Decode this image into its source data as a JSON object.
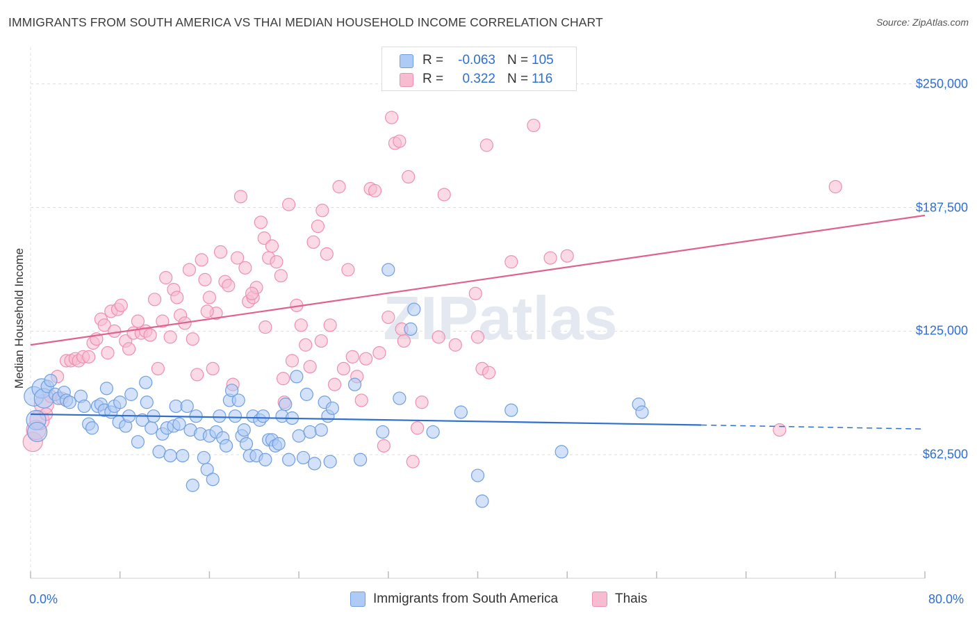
{
  "title": "IMMIGRANTS FROM SOUTH AMERICA VS THAI MEDIAN HOUSEHOLD INCOME CORRELATION CHART",
  "source": "Source: ZipAtlas.com",
  "watermark": "ZIPatlas",
  "legend_top": {
    "rows": [
      {
        "r_label": "R =",
        "r_value": "-0.063",
        "n_label": "N =",
        "n_value": "105"
      },
      {
        "r_label": "R =",
        "r_value": "0.322",
        "n_label": "N =",
        "n_value": "116"
      }
    ]
  },
  "colors": {
    "blue_fill": "#aecbf5",
    "blue_stroke": "#6f9fe0",
    "blue_line": "#2e6fd0",
    "pink_fill": "#f7bcd0",
    "pink_stroke": "#ee8fb0",
    "pink_line": "#e0628c",
    "grid": "#dddddd",
    "axis_text": "#2e6fd0"
  },
  "chart_data": {
    "type": "scatter",
    "title": "IMMIGRANTS FROM SOUTH AMERICA VS THAI MEDIAN HOUSEHOLD INCOME CORRELATION CHART",
    "xlabel": "",
    "ylabel": "Median Household Income",
    "xlim": [
      0,
      80
    ],
    "ylim": [
      0,
      265000
    ],
    "x_ticks": [
      "0.0%",
      "80.0%"
    ],
    "y_ticks": [
      {
        "value": 62500,
        "label": "$62,500"
      },
      {
        "value": 125000,
        "label": "$125,000"
      },
      {
        "value": 187500,
        "label": "$187,500"
      },
      {
        "value": 250000,
        "label": "$250,000"
      }
    ],
    "grid": true,
    "legend_placement": "bottom",
    "series": [
      {
        "name": "Immigrants from South America",
        "color": "#6f9fe0",
        "trend": {
          "x": [
            0,
            60
          ],
          "y": [
            83000,
            77500
          ],
          "dashed_to_x": 80,
          "dashed_y_end": 75500
        },
        "points": [
          [
            0.3,
            92000
          ],
          [
            0.5,
            80000
          ],
          [
            0.6,
            74000
          ],
          [
            1.0,
            96000
          ],
          [
            1.2,
            91000
          ],
          [
            1.5,
            97000
          ],
          [
            1.8,
            100000
          ],
          [
            2.2,
            93000
          ],
          [
            2.5,
            91000
          ],
          [
            3.0,
            94000
          ],
          [
            3.2,
            90000
          ],
          [
            3.5,
            89000
          ],
          [
            4.5,
            92000
          ],
          [
            4.8,
            87000
          ],
          [
            5.2,
            78000
          ],
          [
            5.5,
            76000
          ],
          [
            6.0,
            87000
          ],
          [
            6.3,
            88000
          ],
          [
            6.6,
            85000
          ],
          [
            6.8,
            96000
          ],
          [
            7.2,
            84000
          ],
          [
            7.5,
            87000
          ],
          [
            7.9,
            79000
          ],
          [
            8.0,
            89000
          ],
          [
            8.5,
            77000
          ],
          [
            8.8,
            82000
          ],
          [
            9.0,
            93000
          ],
          [
            9.6,
            69000
          ],
          [
            10.0,
            80000
          ],
          [
            10.3,
            99000
          ],
          [
            10.4,
            89000
          ],
          [
            10.8,
            76000
          ],
          [
            11.0,
            82000
          ],
          [
            11.5,
            64000
          ],
          [
            11.8,
            73000
          ],
          [
            12.2,
            76000
          ],
          [
            12.5,
            62000
          ],
          [
            12.8,
            77000
          ],
          [
            13.0,
            87000
          ],
          [
            13.3,
            78000
          ],
          [
            13.6,
            62000
          ],
          [
            14.0,
            87000
          ],
          [
            14.3,
            75000
          ],
          [
            14.5,
            47000
          ],
          [
            14.8,
            82000
          ],
          [
            15.2,
            73000
          ],
          [
            15.5,
            61000
          ],
          [
            15.8,
            55000
          ],
          [
            16.0,
            72000
          ],
          [
            16.3,
            50000
          ],
          [
            16.6,
            74000
          ],
          [
            16.9,
            82000
          ],
          [
            17.2,
            71000
          ],
          [
            17.5,
            67000
          ],
          [
            17.8,
            90000
          ],
          [
            18.0,
            95000
          ],
          [
            18.3,
            82000
          ],
          [
            18.6,
            90000
          ],
          [
            18.9,
            72000
          ],
          [
            19.1,
            75000
          ],
          [
            19.3,
            68000
          ],
          [
            19.6,
            62000
          ],
          [
            19.9,
            82000
          ],
          [
            20.2,
            62000
          ],
          [
            20.5,
            80000
          ],
          [
            20.8,
            82000
          ],
          [
            21.0,
            60000
          ],
          [
            21.3,
            70000
          ],
          [
            21.6,
            70000
          ],
          [
            21.9,
            67000
          ],
          [
            22.2,
            68000
          ],
          [
            22.5,
            82000
          ],
          [
            22.8,
            88000
          ],
          [
            23.1,
            60000
          ],
          [
            23.4,
            81000
          ],
          [
            23.8,
            102000
          ],
          [
            24.0,
            72000
          ],
          [
            24.4,
            61000
          ],
          [
            24.7,
            93000
          ],
          [
            25.0,
            74000
          ],
          [
            25.4,
            58000
          ],
          [
            26.0,
            75000
          ],
          [
            26.3,
            89000
          ],
          [
            26.6,
            82000
          ],
          [
            26.8,
            59000
          ],
          [
            27.0,
            86000
          ],
          [
            29.0,
            98000
          ],
          [
            31.5,
            74000
          ],
          [
            32.0,
            156000
          ],
          [
            33.0,
            91000
          ],
          [
            34.0,
            126000
          ],
          [
            34.3,
            136000
          ],
          [
            36.0,
            74000
          ],
          [
            38.5,
            84000
          ],
          [
            40.0,
            52000
          ],
          [
            40.4,
            39000
          ],
          [
            43.0,
            85000
          ],
          [
            47.5,
            64000
          ],
          [
            54.4,
            88000
          ],
          [
            54.7,
            84000
          ],
          [
            29.5,
            60000
          ]
        ]
      },
      {
        "name": "Thais",
        "color": "#ee8fb0",
        "trend": {
          "x": [
            0,
            80
          ],
          "y": [
            118000,
            183500
          ]
        },
        "points": [
          [
            0.2,
            69000
          ],
          [
            0.5,
            75000
          ],
          [
            0.8,
            80000
          ],
          [
            1.2,
            88000
          ],
          [
            1.4,
            83000
          ],
          [
            1.8,
            92000
          ],
          [
            2.4,
            102000
          ],
          [
            2.8,
            91000
          ],
          [
            3.2,
            110000
          ],
          [
            3.6,
            110000
          ],
          [
            4.0,
            111000
          ],
          [
            4.3,
            110000
          ],
          [
            4.7,
            112000
          ],
          [
            5.2,
            112000
          ],
          [
            5.6,
            119000
          ],
          [
            5.9,
            121000
          ],
          [
            6.3,
            131000
          ],
          [
            6.6,
            128000
          ],
          [
            6.9,
            114000
          ],
          [
            7.2,
            135000
          ],
          [
            7.5,
            125000
          ],
          [
            7.8,
            136000
          ],
          [
            8.1,
            138000
          ],
          [
            8.5,
            120000
          ],
          [
            8.8,
            116000
          ],
          [
            9.2,
            124000
          ],
          [
            9.6,
            130000
          ],
          [
            9.9,
            124000
          ],
          [
            10.3,
            125000
          ],
          [
            10.7,
            123000
          ],
          [
            11.1,
            141000
          ],
          [
            11.4,
            106000
          ],
          [
            11.8,
            130000
          ],
          [
            12.1,
            152000
          ],
          [
            12.5,
            122000
          ],
          [
            12.8,
            146000
          ],
          [
            13.1,
            142000
          ],
          [
            13.4,
            133000
          ],
          [
            13.8,
            129000
          ],
          [
            14.2,
            156000
          ],
          [
            14.5,
            121000
          ],
          [
            14.9,
            103000
          ],
          [
            15.3,
            161000
          ],
          [
            15.6,
            151000
          ],
          [
            16.0,
            142000
          ],
          [
            16.3,
            106000
          ],
          [
            16.6,
            134000
          ],
          [
            17.0,
            165000
          ],
          [
            17.4,
            150000
          ],
          [
            17.7,
            148000
          ],
          [
            18.1,
            98000
          ],
          [
            18.5,
            162000
          ],
          [
            18.8,
            193000
          ],
          [
            19.2,
            157000
          ],
          [
            19.5,
            140000
          ],
          [
            19.9,
            142000
          ],
          [
            20.2,
            147000
          ],
          [
            20.6,
            180000
          ],
          [
            20.9,
            172000
          ],
          [
            21.3,
            162000
          ],
          [
            21.6,
            168000
          ],
          [
            22.0,
            160000
          ],
          [
            22.4,
            153000
          ],
          [
            22.7,
            89000
          ],
          [
            23.1,
            189000
          ],
          [
            23.4,
            110000
          ],
          [
            23.8,
            138000
          ],
          [
            24.2,
            128000
          ],
          [
            24.6,
            118000
          ],
          [
            25.0,
            107000
          ],
          [
            25.3,
            170000
          ],
          [
            25.7,
            178000
          ],
          [
            26.1,
            186000
          ],
          [
            26.5,
            164000
          ],
          [
            26.8,
            128000
          ],
          [
            27.2,
            98000
          ],
          [
            27.6,
            198000
          ],
          [
            28.0,
            106000
          ],
          [
            28.4,
            156000
          ],
          [
            28.8,
            112000
          ],
          [
            29.2,
            102000
          ],
          [
            29.6,
            90000
          ],
          [
            30.0,
            111000
          ],
          [
            30.4,
            197000
          ],
          [
            30.8,
            196000
          ],
          [
            31.2,
            114000
          ],
          [
            31.6,
            67000
          ],
          [
            32.0,
            132000
          ],
          [
            32.3,
            233000
          ],
          [
            32.6,
            220000
          ],
          [
            33.0,
            221000
          ],
          [
            33.4,
            120000
          ],
          [
            33.8,
            203000
          ],
          [
            34.2,
            59000
          ],
          [
            34.6,
            76000
          ],
          [
            35.0,
            89000
          ],
          [
            36.5,
            122000
          ],
          [
            37.0,
            194000
          ],
          [
            38.0,
            118000
          ],
          [
            39.8,
            144000
          ],
          [
            40.0,
            122000
          ],
          [
            40.4,
            106000
          ],
          [
            40.8,
            219000
          ],
          [
            41.0,
            104000
          ],
          [
            43.0,
            160000
          ],
          [
            45.0,
            229000
          ],
          [
            46.5,
            162000
          ],
          [
            48.0,
            163000
          ],
          [
            72.0,
            198000
          ],
          [
            67.0,
            75000
          ],
          [
            33.2,
            126000
          ],
          [
            26.0,
            120000
          ],
          [
            21.0,
            127000
          ],
          [
            22.6,
            101000
          ],
          [
            19.8,
            144000
          ],
          [
            15.8,
            135000
          ]
        ]
      }
    ]
  },
  "bottom_legend": [
    {
      "label": "Immigrants from South America"
    },
    {
      "label": "Thais"
    }
  ]
}
